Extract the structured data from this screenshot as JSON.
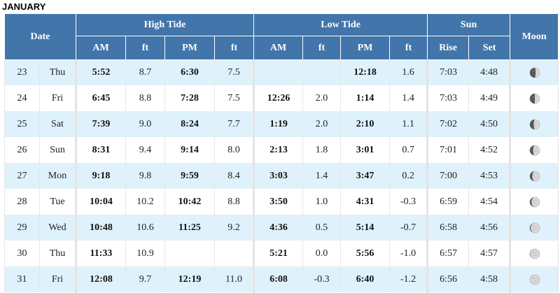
{
  "month": "JANUARY",
  "headers": {
    "date": "Date",
    "high_tide": "High Tide",
    "low_tide": "Low Tide",
    "sun": "Sun",
    "moon": "Moon",
    "am": "AM",
    "ft": "ft",
    "pm": "PM",
    "rise": "Rise",
    "set": "Set"
  },
  "rows": [
    {
      "date": "23",
      "day": "Thu",
      "high_am": "5:52",
      "high_am_ft": "8.7",
      "high_pm": "6:30",
      "high_pm_ft": "7.5",
      "low_am": "",
      "low_am_ft": "",
      "low_pm": "12:18",
      "low_pm_ft": "1.6",
      "rise": "7:03",
      "set": "4:48",
      "moon": "waxing-gibbous-icon"
    },
    {
      "date": "24",
      "day": "Fri",
      "high_am": "6:45",
      "high_am_ft": "8.8",
      "high_pm": "7:28",
      "high_pm_ft": "7.5",
      "low_am": "12:26",
      "low_am_ft": "2.0",
      "low_pm": "1:14",
      "low_pm_ft": "1.4",
      "rise": "7:03",
      "set": "4:49",
      "moon": "waxing-gibbous-icon"
    },
    {
      "date": "25",
      "day": "Sat",
      "high_am": "7:39",
      "high_am_ft": "9.0",
      "high_pm": "8:24",
      "high_pm_ft": "7.7",
      "low_am": "1:19",
      "low_am_ft": "2.0",
      "low_pm": "2:10",
      "low_pm_ft": "1.1",
      "rise": "7:02",
      "set": "4:50",
      "moon": "waxing-gibbous-icon"
    },
    {
      "date": "26",
      "day": "Sun",
      "high_am": "8:31",
      "high_am_ft": "9.4",
      "high_pm": "9:14",
      "high_pm_ft": "8.0",
      "low_am": "2:13",
      "low_am_ft": "1.8",
      "low_pm": "3:01",
      "low_pm_ft": "0.7",
      "rise": "7:01",
      "set": "4:52",
      "moon": "waxing-gibbous-icon"
    },
    {
      "date": "27",
      "day": "Mon",
      "high_am": "9:18",
      "high_am_ft": "9.8",
      "high_pm": "9:59",
      "high_pm_ft": "8.4",
      "low_am": "3:03",
      "low_am_ft": "1.4",
      "low_pm": "3:47",
      "low_pm_ft": "0.2",
      "rise": "7:00",
      "set": "4:53",
      "moon": "waxing-gibbous-icon"
    },
    {
      "date": "28",
      "day": "Tue",
      "high_am": "10:04",
      "high_am_ft": "10.2",
      "high_pm": "10:42",
      "high_pm_ft": "8.8",
      "low_am": "3:50",
      "low_am_ft": "1.0",
      "low_pm": "4:31",
      "low_pm_ft": "-0.3",
      "rise": "6:59",
      "set": "4:54",
      "moon": "waxing-gibbous-icon"
    },
    {
      "date": "29",
      "day": "Wed",
      "high_am": "10:48",
      "high_am_ft": "10.6",
      "high_pm": "11:25",
      "high_pm_ft": "9.2",
      "low_am": "4:36",
      "low_am_ft": "0.5",
      "low_pm": "5:14",
      "low_pm_ft": "-0.7",
      "rise": "6:58",
      "set": "4:56",
      "moon": "full-moon-icon"
    },
    {
      "date": "30",
      "day": "Thu",
      "high_am": "11:33",
      "high_am_ft": "10.9",
      "high_pm": "",
      "high_pm_ft": "",
      "low_am": "5:21",
      "low_am_ft": "0.0",
      "low_pm": "5:56",
      "low_pm_ft": "-1.0",
      "rise": "6:57",
      "set": "4:57",
      "moon": "full-moon-icon"
    },
    {
      "date": "31",
      "day": "Fri",
      "high_am": "12:08",
      "high_am_ft": "9.7",
      "high_pm": "12:19",
      "high_pm_ft": "11.0",
      "low_am": "6:08",
      "low_am_ft": "-0.3",
      "low_pm": "6:40",
      "low_pm_ft": "-1.2",
      "rise": "6:56",
      "set": "4:58",
      "moon": "full-moon-icon"
    }
  ],
  "moon_phases": [
    0.42,
    0.5,
    0.6,
    0.68,
    0.76,
    0.84,
    0.92,
    0.97,
    1.0
  ],
  "colors": {
    "header_bg": "#4275aa",
    "row_alt": "#dff2fc",
    "moon_dark": "#555555",
    "moon_light": "#d8d8d8"
  }
}
